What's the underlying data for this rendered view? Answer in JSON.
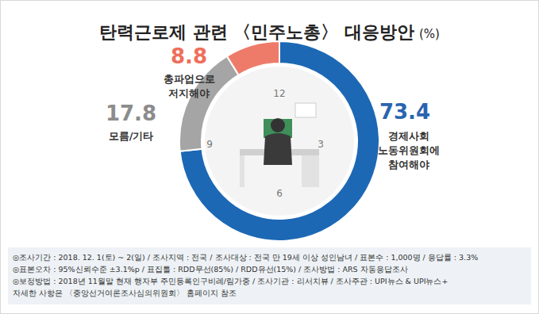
{
  "chart_data": {
    "type": "donut",
    "title": "탄력근로제 관련 〈민주노총〉 대응방안",
    "unit": "(%)",
    "categories": [
      "경제사회\n노동위원회에\n참여해야",
      "모름/기타",
      "총파업으로\n저지해야"
    ],
    "values": [
      73.4,
      17.8,
      8.8
    ],
    "colors": [
      "#1c68b5",
      "#a5a5a5",
      "#ee7b6a"
    ],
    "data_labels": true,
    "clock_labels": [
      "12",
      "3",
      "6",
      "9"
    ],
    "notes": [
      "◎조사기간 : 2018. 12. 1(토) ~ 2(일) / 조사지역 : 전국 / 조사대상 : 전국 만 19세 이상 성인남녀 / 표본수 : 1,000명 / 응답률 : 3.3%",
      "◎표본오차 : 95%신뢰수준 ±3.1%p / 표집틀 : RDD무선(85%) / RDD유선(15%) / 조사방법 : ARS 자동응답조사",
      "◎보정방법 : 2018년 11월말 현재 행자부 주민등록인구비례/림가중 / 조사기관 : 리서치뷰 / 조사주관 : UPI뉴스 & UPI뉴스+",
      "자세한 사항은 〈중앙선거여론조사심의위원회〉 홈페이지 참조"
    ]
  }
}
